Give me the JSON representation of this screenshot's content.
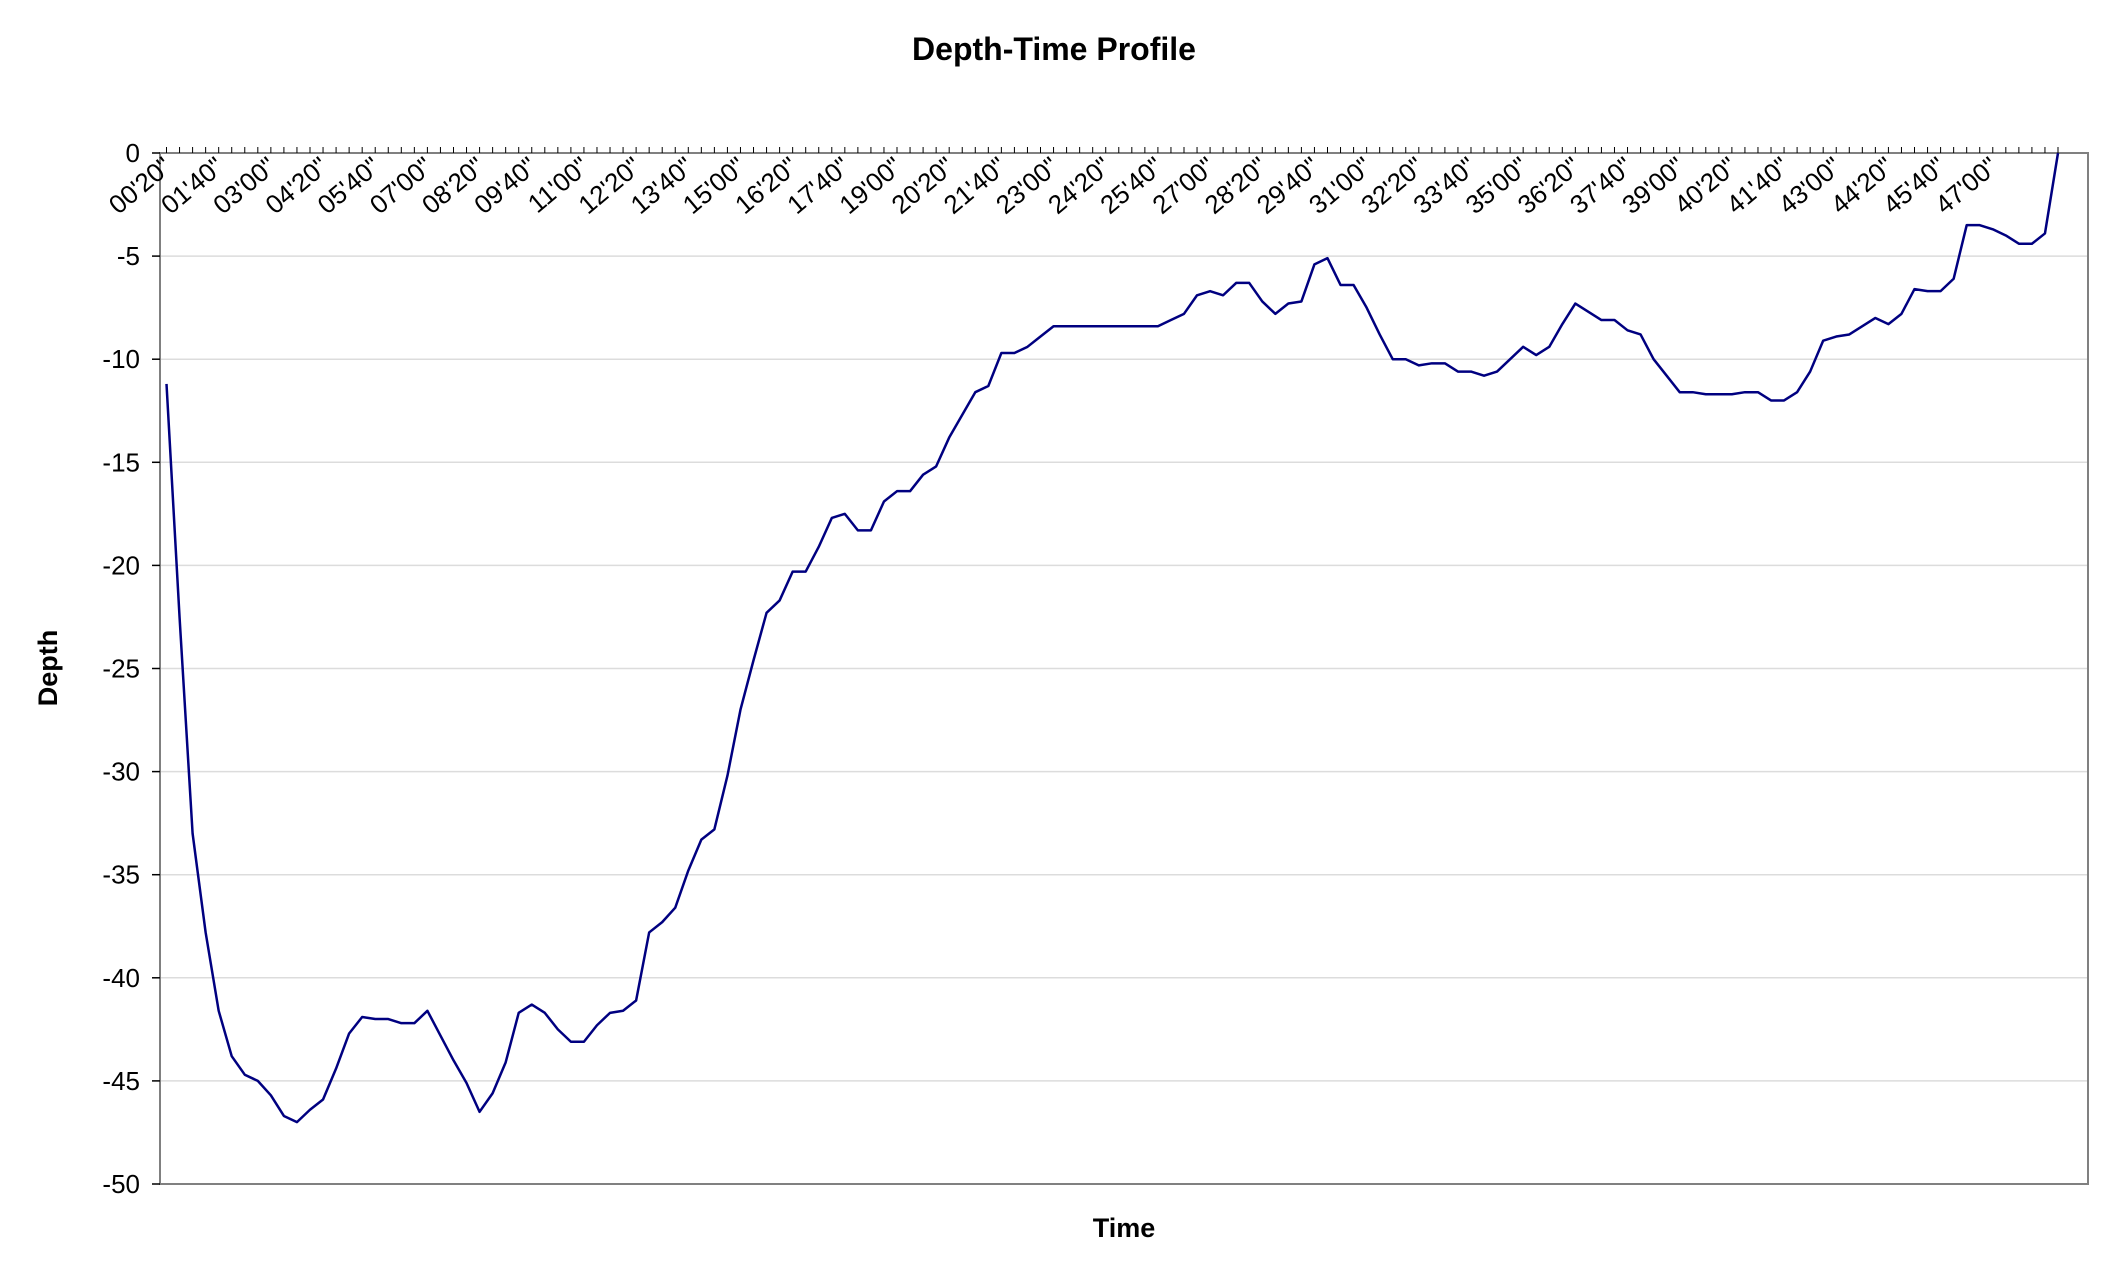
{
  "chart_data": {
    "type": "line",
    "title": "Depth-Time Profile",
    "xlabel": "Time",
    "ylabel": "Depth",
    "ylim": [
      -50,
      0
    ],
    "ytick_values": [
      0,
      -5,
      -10,
      -15,
      -20,
      -25,
      -30,
      -35,
      -40,
      -45,
      -50
    ],
    "grid": true,
    "legend": "none",
    "line_color": "#000080",
    "grid_color": "#dcdcdc",
    "x_tick_labels": [
      "00'20\"",
      "01'40\"",
      "03'00\"",
      "04'20\"",
      "05'40\"",
      "07'00\"",
      "08'20\"",
      "09'40\"",
      "11'00\"",
      "12'20\"",
      "13'40\"",
      "15'00\"",
      "16'20\"",
      "17'40\"",
      "19'00\"",
      "20'20\"",
      "21'40\"",
      "23'00\"",
      "24'20\"",
      "25'40\"",
      "27'00\"",
      "28'20\"",
      "29'40\"",
      "31'00\"",
      "32'20\"",
      "33'40\"",
      "35'00\"",
      "36'20\"",
      "37'40\"",
      "39'00\"",
      "40'20\"",
      "41'40\"",
      "43'00\"",
      "44'20\"",
      "45'40\"",
      "47'00\""
    ],
    "series": [
      {
        "x_seconds_start": 20,
        "x_seconds_step": 20,
        "values": [
          -11.2,
          -22.5,
          -33,
          -37.8,
          -41.6,
          -43.8,
          -44.7,
          -45,
          -45.7,
          -46.7,
          -47,
          -46.4,
          -45.9,
          -44.4,
          -42.7,
          -41.9,
          -42,
          -42,
          -42.2,
          -42.2,
          -41.6,
          -42.8,
          -44,
          -45.1,
          -46.5,
          -45.6,
          -44.1,
          -41.7,
          -41.3,
          -41.7,
          -42.5,
          -43.1,
          -43.1,
          -42.3,
          -41.7,
          -41.6,
          -41.1,
          -37.8,
          -37.3,
          -36.6,
          -34.8,
          -33.3,
          -32.8,
          -30.2,
          -27,
          -24.6,
          -22.3,
          -21.7,
          -20.3,
          -20.3,
          -19.1,
          -17.7,
          -17.5,
          -18.3,
          -18.3,
          -16.9,
          -16.4,
          -16.4,
          -15.6,
          -15.2,
          -13.8,
          -12.7,
          -11.6,
          -11.3,
          -9.7,
          -9.7,
          -9.4,
          -8.9,
          -8.4,
          -8.4,
          -8.4,
          -8.4,
          -8.4,
          -8.4,
          -8.4,
          -8.4,
          -8.4,
          -8.1,
          -7.8,
          -6.9,
          -6.7,
          -6.9,
          -6.3,
          -6.3,
          -7.2,
          -7.8,
          -7.3,
          -7.2,
          -5.4,
          -5.1,
          -6.4,
          -6.4,
          -7.5,
          -8.8,
          -10,
          -10,
          -10.3,
          -10.2,
          -10.2,
          -10.6,
          -10.6,
          -10.8,
          -10.6,
          -10,
          -9.4,
          -9.8,
          -9.4,
          -8.3,
          -7.3,
          -7.7,
          -8.1,
          -8.1,
          -8.6,
          -8.8,
          -10,
          -10.8,
          -11.6,
          -11.6,
          -11.7,
          -11.7,
          -11.7,
          -11.6,
          -11.6,
          -12,
          -12,
          -11.6,
          -10.6,
          -9.1,
          -8.9,
          -8.8,
          -8.4,
          -8,
          -8.3,
          -7.8,
          -6.6,
          -6.7,
          -6.7,
          -6.1,
          -3.5,
          -3.5,
          -3.7,
          -4,
          -4.4,
          -4.4,
          -3.9,
          0
        ]
      }
    ]
  }
}
